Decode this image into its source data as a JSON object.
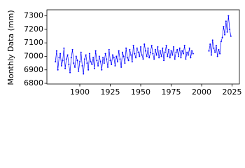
{
  "chart_data": {
    "type": "line",
    "ylabel": "Monthly Data (mm)",
    "x": [
      1880,
      1881,
      1882,
      1883,
      1884,
      1885,
      1886,
      1887,
      1888,
      1889,
      1890,
      1891,
      1892,
      1893,
      1894,
      1895,
      1896,
      1897,
      1898,
      1899,
      1900,
      1901,
      1902,
      1903,
      1904,
      1905,
      1906,
      1907,
      1908,
      1909,
      1910,
      1911,
      1912,
      1913,
      1914,
      1915,
      1916,
      1917,
      1918,
      1919,
      1920,
      1921,
      1922,
      1923,
      1924,
      1925,
      1926,
      1927,
      1928,
      1929,
      1930,
      1931,
      1932,
      1933,
      1934,
      1935,
      1936,
      1937,
      1938,
      1939,
      1940,
      1941,
      1942,
      1943,
      1944,
      1945,
      1946,
      1947,
      1948,
      1949,
      1950,
      1951,
      1952,
      1953,
      1954,
      1955,
      1956,
      1957,
      1958,
      1959,
      1960,
      1961,
      1962,
      1963,
      1964,
      1965,
      1966,
      1967,
      1968,
      1969,
      1970,
      1971,
      1972,
      1973,
      1974,
      1975,
      1976,
      1977,
      1978,
      1979,
      1980,
      1981,
      1982,
      1983,
      1984,
      1985,
      1986,
      1987,
      1988,
      1989,
      1990,
      1991,
      1992,
      1993,
      2000,
      2006,
      2007,
      2008,
      2009,
      2010,
      2011,
      2012,
      2013,
      2014,
      2015,
      2016,
      2017,
      2018,
      2019,
      2020,
      2021,
      2022,
      2023,
      2024
    ],
    "series": [
      {
        "color": "#0000ff",
        "values": [
          6960,
          7040,
          6900,
          6990,
          7020,
          6930,
          6970,
          7060,
          6910,
          6980,
          7010,
          6940,
          6880,
          6990,
          7050,
          6950,
          6920,
          7000,
          6970,
          6890,
          6960,
          7030,
          6930,
          6870,
          6980,
          7010,
          6950,
          6900,
          7020,
          6960,
          6940,
          6990,
          6910,
          7040,
          6970,
          6930,
          7000,
          6960,
          6900,
          6990,
          6950,
          7020,
          6980,
          6920,
          7050,
          6970,
          6940,
          7010,
          6990,
          6930,
          7000,
          6960,
          7040,
          6980,
          6920,
          7030,
          7000,
          6950,
          7060,
          6990,
          6970,
          7050,
          7010,
          6960,
          7080,
          7020,
          6990,
          7060,
          7030,
          7000,
          7070,
          7010,
          6980,
          7090,
          7040,
          7000,
          7060,
          6990,
          7030,
          7080,
          7020,
          6980,
          7050,
          7010,
          7070,
          6990,
          7040,
          7000,
          7060,
          6970,
          7030,
          7080,
          7000,
          7050,
          6990,
          7040,
          7010,
          7070,
          6980,
          7030,
          7050,
          7000,
          7060,
          6990,
          7040,
          7020,
          7080,
          6980,
          7030,
          7010,
          7060,
          6990,
          7040,
          7020,
          null,
          7040,
          7090,
          7010,
          7120,
          7060,
          7030,
          7080,
          7000,
          7050,
          7020,
          7110,
          7140,
          7220,
          7160,
          7260,
          7180,
          7300,
          7200,
          7150
        ]
      }
    ],
    "xlim": [
      1873,
      2031
    ],
    "ylim": [
      6795,
      7345
    ],
    "xticks": [
      1900,
      1925,
      1950,
      1975,
      2000,
      2025
    ],
    "yticks": [
      6800,
      6900,
      7000,
      7100,
      7200,
      7300
    ]
  }
}
